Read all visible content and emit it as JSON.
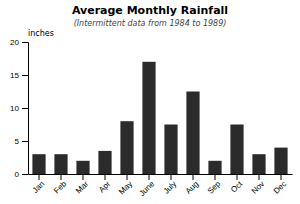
{
  "chart_data": {
    "type": "bar",
    "title": "Average Monthly Rainfall",
    "subtitle": "(Intermittent data from 1984 to 1989)",
    "ylabel": "inches",
    "categories": [
      "Jan",
      "Feb",
      "Mar",
      "Apr",
      "May",
      "June",
      "July",
      "Aug",
      "Sep",
      "Oct",
      "Nov",
      "Dec"
    ],
    "values": [
      3.0,
      3.0,
      2.0,
      3.5,
      8.0,
      17.0,
      7.5,
      12.5,
      2.0,
      7.5,
      3.0,
      4.0
    ],
    "color": "#2b2b2b",
    "ylim": [
      0,
      20
    ],
    "yticks": [
      0,
      5,
      10,
      15,
      20
    ],
    "grid": false
  }
}
